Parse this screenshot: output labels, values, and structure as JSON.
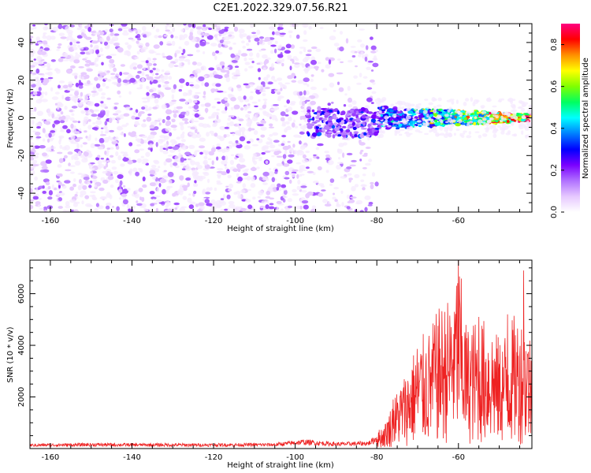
{
  "title": "C2E1.2022.329.07.56.R21",
  "chart_data": [
    {
      "type": "heatmap",
      "xlabel": "Height of straight line (km)",
      "ylabel": "Frequency (Hz)",
      "xlim": [
        -165,
        -42
      ],
      "ylim": [
        -50,
        50
      ],
      "x_ticks": [
        -160,
        -140,
        -120,
        -100,
        -80,
        -60
      ],
      "y_ticks": [
        -40,
        -20,
        0,
        20,
        40
      ],
      "colorbar": {
        "label": "Normalized spectral amplitude",
        "range": [
          0.0,
          0.9
        ],
        "ticks": [
          0.0,
          0.2,
          0.4,
          0.6,
          0.8
        ],
        "colormap": [
          "#ffffff",
          "#e6c8ff",
          "#b070ff",
          "#7a00ff",
          "#0000ff",
          "#0080ff",
          "#00ffff",
          "#00ff60",
          "#80ff00",
          "#ffff00",
          "#ff9000",
          "#ff0000",
          "#ff0080"
        ]
      },
      "regions": [
        {
          "x_range": [
            -165,
            -82
          ],
          "freq_range": [
            -50,
            50
          ],
          "amplitude": 0.05,
          "description": "broadband noise"
        },
        {
          "x_range": [
            -97,
            -80
          ],
          "freq_range": [
            -10,
            5
          ],
          "amplitude": 0.25
        },
        {
          "x_range": [
            -80,
            -42
          ],
          "freq_range": [
            -6,
            6
          ],
          "amplitude": 0.5
        }
      ],
      "grid": false
    },
    {
      "type": "line",
      "xlabel": "Height of straight line (km)",
      "ylabel": "SNR (10 * v/v)",
      "xlim": [
        -165,
        -42
      ],
      "ylim": [
        0,
        7300
      ],
      "x_ticks": [
        -160,
        -140,
        -120,
        -100,
        -80,
        -60
      ],
      "y_ticks": [
        2000,
        4000,
        6000
      ],
      "color": "#ee2222",
      "series": [
        {
          "x": [
            -165,
            -150,
            -135,
            -120,
            -105,
            -98,
            -90,
            -82,
            -78,
            -75,
            -72,
            -70,
            -67,
            -65,
            -62,
            -60,
            -58,
            -55,
            -52,
            -50,
            -48,
            -46,
            -44,
            -42
          ],
          "y": [
            130,
            150,
            140,
            140,
            150,
            250,
            170,
            200,
            600,
            1400,
            2000,
            2600,
            2800,
            3300,
            3600,
            4600,
            2900,
            3100,
            3000,
            2600,
            2900,
            3200,
            3100,
            2700
          ],
          "peaks": [
            [
              -60,
              7300
            ],
            [
              -44,
              6900
            ],
            [
              -61,
              5300
            ],
            [
              -55,
              5100
            ],
            [
              -48,
              5200
            ],
            [
              -66,
              3800
            ],
            [
              -76,
              1900
            ]
          ]
        }
      ],
      "grid": false
    }
  ]
}
